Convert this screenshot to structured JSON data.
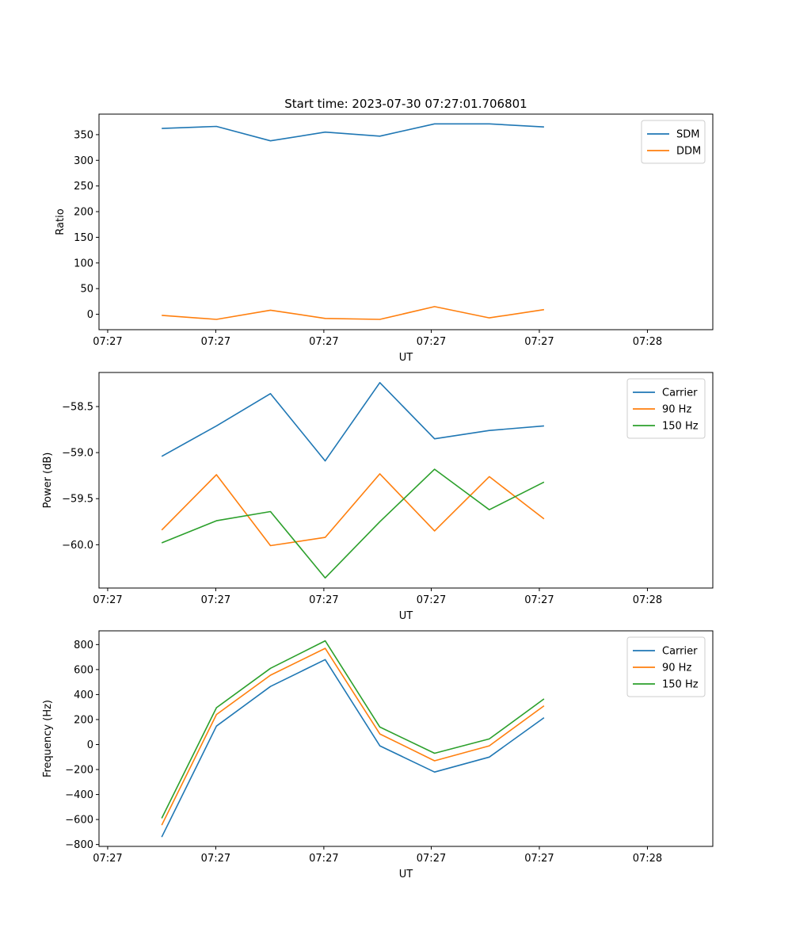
{
  "figure_title": "Start time: 2023-07-30 07:27:01.706801",
  "chart_data": [
    {
      "type": "line",
      "id": "ratio",
      "title": "Start time: 2023-07-30 07:27:01.706801",
      "xlabel": "UT",
      "ylabel": "Ratio",
      "x": [
        0.94,
        1.76,
        2.57,
        3.39,
        4.21,
        5.03,
        5.85,
        6.67
      ],
      "xlim": [
        0,
        9.2
      ],
      "xticks": [
        {
          "v": 0.13,
          "label": "07:27"
        },
        {
          "v": 1.75,
          "label": "07:27"
        },
        {
          "v": 3.37,
          "label": "07:27"
        },
        {
          "v": 4.98,
          "label": "07:27"
        },
        {
          "v": 6.6,
          "label": "07:27"
        },
        {
          "v": 8.22,
          "label": "07:28"
        }
      ],
      "ylim": [
        -30,
        390
      ],
      "yticks": [
        0,
        50,
        100,
        150,
        200,
        250,
        300,
        350
      ],
      "ytick_labels": [
        "0",
        "50",
        "100",
        "150",
        "200",
        "250",
        "300",
        "350"
      ],
      "legend_position": "top-right",
      "series": [
        {
          "name": "SDM",
          "color": "#1f77b4",
          "values": [
            362,
            366,
            338,
            355,
            347,
            371,
            371,
            365
          ]
        },
        {
          "name": "DDM",
          "color": "#ff7f0e",
          "values": [
            -2,
            -10,
            8,
            -8,
            -10,
            15,
            -7,
            9
          ]
        }
      ]
    },
    {
      "type": "line",
      "id": "power",
      "title": "",
      "xlabel": "UT",
      "ylabel": "Power (dB)",
      "x": [
        0.94,
        1.76,
        2.57,
        3.39,
        4.21,
        5.03,
        5.85,
        6.67
      ],
      "xlim": [
        0,
        9.2
      ],
      "xticks": [
        {
          "v": 0.13,
          "label": "07:27"
        },
        {
          "v": 1.75,
          "label": "07:27"
        },
        {
          "v": 3.37,
          "label": "07:27"
        },
        {
          "v": 4.98,
          "label": "07:27"
        },
        {
          "v": 6.6,
          "label": "07:27"
        },
        {
          "v": 8.22,
          "label": "07:28"
        }
      ],
      "ylim": [
        -60.47,
        -58.13
      ],
      "yticks": [
        -60.0,
        -59.5,
        -59.0,
        -58.5
      ],
      "ytick_labels": [
        "−60.0",
        "−59.5",
        "−59.0",
        "−58.5"
      ],
      "legend_position": "top-right",
      "series": [
        {
          "name": "Carrier",
          "color": "#1f77b4",
          "values": [
            -59.04,
            -58.71,
            -58.36,
            -59.09,
            -58.24,
            -58.85,
            -58.76,
            -58.71
          ]
        },
        {
          "name": "90 Hz",
          "color": "#ff7f0e",
          "values": [
            -59.84,
            -59.24,
            -60.01,
            -59.92,
            -59.23,
            -59.85,
            -59.26,
            -59.72
          ]
        },
        {
          "name": "150 Hz",
          "color": "#2ca02c",
          "values": [
            -59.98,
            -59.74,
            -59.64,
            -60.36,
            -59.75,
            -59.18,
            -59.62,
            -59.32
          ]
        }
      ]
    },
    {
      "type": "line",
      "id": "frequency",
      "title": "",
      "xlabel": "UT",
      "ylabel": "Frequency (Hz)",
      "x": [
        0.94,
        1.76,
        2.57,
        3.39,
        4.21,
        5.03,
        5.85,
        6.67
      ],
      "xlim": [
        0,
        9.2
      ],
      "xticks": [
        {
          "v": 0.13,
          "label": "07:27"
        },
        {
          "v": 1.75,
          "label": "07:27"
        },
        {
          "v": 3.37,
          "label": "07:27"
        },
        {
          "v": 4.98,
          "label": "07:27"
        },
        {
          "v": 6.6,
          "label": "07:27"
        },
        {
          "v": 8.22,
          "label": "07:28"
        }
      ],
      "ylim": [
        -815,
        910
      ],
      "yticks": [
        -800,
        -600,
        -400,
        -200,
        0,
        200,
        400,
        600,
        800
      ],
      "ytick_labels": [
        "−800",
        "−600",
        "−400",
        "−200",
        "0",
        "200",
        "400",
        "600",
        "800"
      ],
      "legend_position": "top-right",
      "series": [
        {
          "name": "Carrier",
          "color": "#1f77b4",
          "values": [
            -740,
            148,
            465,
            680,
            -10,
            -220,
            -100,
            215
          ]
        },
        {
          "name": "90 Hz",
          "color": "#ff7f0e",
          "values": [
            -645,
            240,
            555,
            770,
            85,
            -130,
            -10,
            310
          ]
        },
        {
          "name": "150 Hz",
          "color": "#2ca02c",
          "values": [
            -590,
            295,
            610,
            830,
            140,
            -70,
            45,
            365
          ]
        }
      ]
    }
  ]
}
